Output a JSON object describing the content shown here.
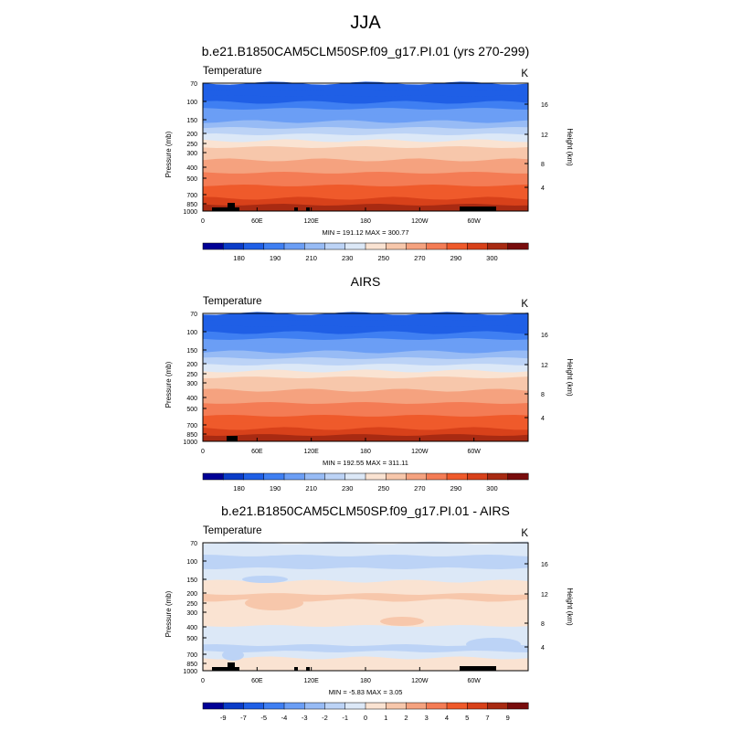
{
  "figure": {
    "title": "JJA"
  },
  "chart_data": [
    {
      "type": "heatmap",
      "panel_title": "b.e21.B1850CAM5CLM50SP.f09_g17.PI.01 (yrs 270-299)",
      "variable": "Temperature",
      "units": "K",
      "ylabel": "Pressure (mb)",
      "y2label": "Height (km)",
      "x_ticks": [
        "0",
        "60E",
        "120E",
        "180",
        "120W",
        "60W"
      ],
      "y_ticks": [
        "70",
        "100",
        "150",
        "200",
        "250",
        "300",
        "400",
        "500",
        "700",
        "850",
        "1000"
      ],
      "y2_ticks": [
        "16",
        "12",
        "8",
        "4"
      ],
      "stats": "MIN = 191.12  MAX = 300.77",
      "colorbar_labels": [
        "180",
        "190",
        "210",
        "230",
        "250",
        "270",
        "290",
        "300"
      ],
      "levels": [
        "<180",
        "180-185",
        "185-190",
        "190-200",
        "200-210",
        "210-220",
        "220-230",
        "230-240",
        "240-250",
        "250-260",
        "260-270",
        "270-280",
        "280-290",
        "290-295",
        "295-300",
        ">300"
      ],
      "colors": [
        "#000096",
        "#0a3cc8",
        "#1f5fe6",
        "#3f7ff2",
        "#6b9ef5",
        "#97bbf5",
        "#bcd3f6",
        "#dce8f7",
        "#fae3d2",
        "#f7c7ab",
        "#f5a27f",
        "#f47c55",
        "#ef5a2b",
        "#d8411a",
        "#a82a12",
        "#780c0c"
      ],
      "profile_levels": [
        2,
        2,
        2,
        3,
        4,
        4,
        5,
        6,
        7,
        8,
        9,
        9,
        10,
        10,
        11,
        11,
        12,
        12,
        13,
        14
      ],
      "topography": "black terrain masks at surface over 10E-40E, 100E, 110E and 65W-75W"
    },
    {
      "type": "heatmap",
      "panel_title": "AIRS",
      "variable": "Temperature",
      "units": "K",
      "ylabel": "Pressure (mb)",
      "y2label": "Height (km)",
      "x_ticks": [
        "0",
        "60E",
        "120E",
        "180",
        "120W",
        "60W"
      ],
      "y_ticks": [
        "70",
        "100",
        "150",
        "200",
        "250",
        "300",
        "400",
        "500",
        "700",
        "850",
        "1000"
      ],
      "y2_ticks": [
        "16",
        "12",
        "8",
        "4"
      ],
      "stats": "MIN = 192.55  MAX = 311.11",
      "colorbar_labels": [
        "180",
        "190",
        "210",
        "230",
        "250",
        "270",
        "290",
        "300"
      ],
      "levels": [
        "<180",
        "180-185",
        "185-190",
        "190-200",
        "200-210",
        "210-220",
        "220-230",
        "230-240",
        "240-250",
        "250-260",
        "260-270",
        "270-280",
        "280-290",
        "290-295",
        "295-300",
        ">300"
      ],
      "colors": [
        "#000096",
        "#0a3cc8",
        "#1f5fe6",
        "#3f7ff2",
        "#6b9ef5",
        "#97bbf5",
        "#bcd3f6",
        "#dce8f7",
        "#fae3d2",
        "#f7c7ab",
        "#f5a27f",
        "#f47c55",
        "#ef5a2b",
        "#d8411a",
        "#a82a12",
        "#780c0c"
      ],
      "profile_levels": [
        2,
        2,
        2,
        3,
        4,
        4,
        5,
        6,
        7,
        8,
        9,
        9,
        10,
        10,
        11,
        11,
        12,
        12,
        13,
        14
      ],
      "topography": "small black terrain mask near 30E-35E"
    },
    {
      "type": "heatmap",
      "panel_title": "b.e21.B1850CAM5CLM50SP.f09_g17.PI.01 - AIRS",
      "variable": "Temperature",
      "units": "K",
      "ylabel": "Pressure (mb)",
      "y2label": "Height (km)",
      "x_ticks": [
        "0",
        "60E",
        "120E",
        "180",
        "120W",
        "60W"
      ],
      "y_ticks": [
        "70",
        "100",
        "150",
        "200",
        "250",
        "300",
        "400",
        "500",
        "700",
        "850",
        "1000"
      ],
      "y2_ticks": [
        "16",
        "12",
        "8",
        "4"
      ],
      "stats": "MIN = -5.83  MAX =  3.05",
      "colorbar_labels": [
        "-9",
        "-7",
        "-5",
        "-4",
        "-3",
        "-2",
        "-1",
        "0",
        "1",
        "2",
        "3",
        "4",
        "5",
        "7",
        "9"
      ],
      "levels": [
        "<-9",
        "-9 to -7",
        "-7 to -5",
        "-5 to -4",
        "-4 to -3",
        "-3 to -2",
        "-2 to -1",
        "-1 to 0",
        "0 to 1",
        "1 to 2",
        "2 to 3",
        "3 to 4",
        "4 to 5",
        "5 to 7",
        "7 to 9",
        ">9"
      ],
      "colors": [
        "#000096",
        "#0a3cc8",
        "#1f5fe6",
        "#3f7ff2",
        "#6b9ef5",
        "#97bbf5",
        "#bcd3f6",
        "#dce8f7",
        "#fae3d2",
        "#f7c7ab",
        "#f5a27f",
        "#f47c55",
        "#ef5a2b",
        "#d8411a",
        "#a82a12",
        "#780c0c"
      ],
      "profile_levels": [
        7,
        7,
        6,
        6,
        7,
        7,
        8,
        8,
        9,
        8,
        8,
        8,
        8,
        7,
        7,
        7,
        6,
        7,
        8,
        8
      ],
      "topography": "black terrain masks at surface over 10E-40E, 100E, 110E and 65W-75W"
    }
  ]
}
